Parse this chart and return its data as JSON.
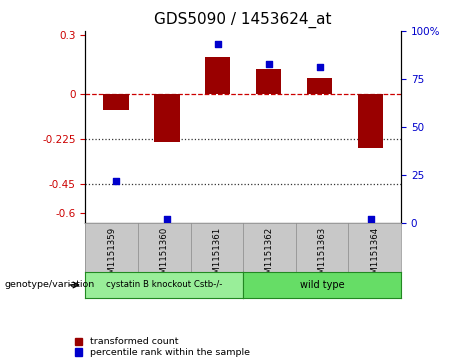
{
  "title": "GDS5090 / 1453624_at",
  "samples": [
    "GSM1151359",
    "GSM1151360",
    "GSM1151361",
    "GSM1151362",
    "GSM1151363",
    "GSM1151364"
  ],
  "transformed_count": [
    -0.08,
    -0.24,
    0.19,
    0.13,
    0.08,
    -0.27
  ],
  "percentile_rank": [
    22,
    2,
    93,
    83,
    81,
    2
  ],
  "ylim_left": [
    -0.65,
    0.32
  ],
  "ylim_right": [
    0,
    100
  ],
  "yticks_left": [
    0.3,
    0,
    -0.225,
    -0.45,
    -0.6
  ],
  "yticks_right": [
    100,
    75,
    50,
    25,
    0
  ],
  "hlines": [
    0,
    -0.225,
    -0.45
  ],
  "hline_styles": [
    "dashed",
    "dotted",
    "dotted"
  ],
  "hline_colors": [
    "#cc0000",
    "#333333",
    "#333333"
  ],
  "bar_color": "#990000",
  "dot_color": "#0000cc",
  "bar_width": 0.5,
  "group1_label": "cystatin B knockout Cstb-/-",
  "group2_label": "wild type",
  "group1_count": 3,
  "group2_count": 3,
  "group1_color": "#99ee99",
  "group2_color": "#66dd66",
  "genotype_label": "genotype/variation",
  "legend_red": "transformed count",
  "legend_blue": "percentile rank within the sample",
  "bg_color": "#ffffff",
  "plot_bg_color": "#ffffff",
  "sample_box_color": "#c8c8c8",
  "title_fontsize": 11,
  "tick_fontsize": 7.5,
  "label_fontsize": 7
}
